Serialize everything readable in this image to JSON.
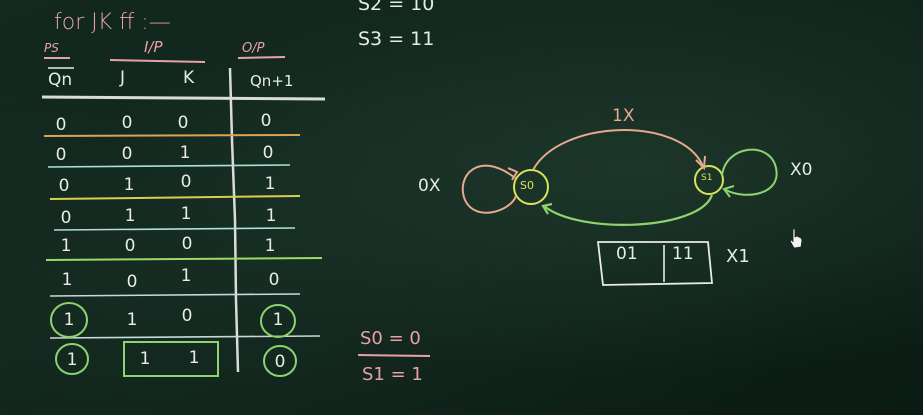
{
  "heading": "for JK ff :—",
  "headers": {
    "ps": "PS",
    "ip": "I/P",
    "op": "O/P",
    "qn": "Qn",
    "j": "J",
    "k": "K",
    "qn1": "Qn+1"
  },
  "rows": [
    [
      "0",
      "0",
      "0",
      "0"
    ],
    [
      "0",
      "0",
      "1",
      "0"
    ],
    [
      "0",
      "1",
      "0",
      "1"
    ],
    [
      "0",
      "1",
      "1",
      "1"
    ],
    [
      "1",
      "0",
      "0",
      "1"
    ],
    [
      "1",
      "0",
      "1",
      "0"
    ],
    [
      "1",
      "1",
      "0",
      "1"
    ],
    [
      "1",
      "1",
      "1",
      "0"
    ]
  ],
  "top_notes": {
    "s2": "S2 = 10",
    "s3": "S3 = 11"
  },
  "diagram": {
    "state_s0": "S0",
    "state_s1": "S1",
    "arc_label_top": "1X",
    "loop_s0_label": "0X",
    "loop_s1_label": "X0",
    "box_label_left": "01",
    "box_label_right": "11",
    "box_side_label": "X1"
  },
  "bottom_notes": {
    "s0": "S0 = 0",
    "s1": "S1 = 1"
  },
  "colors": {
    "chalk_white": "#e6ece8",
    "chalk_pink": "#e7a2a8",
    "chalk_green": "#8ed36e",
    "chalk_yellow": "#d9e35a",
    "chalk_salmon": "#e6a98f",
    "board": "#13291f"
  }
}
